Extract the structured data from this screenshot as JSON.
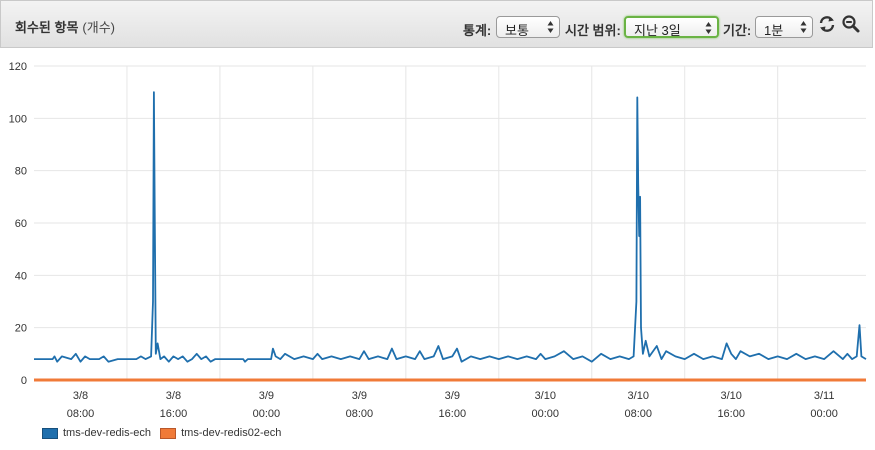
{
  "header": {
    "title": "회수된 항목",
    "title_unit": "(개수)",
    "stat_label": "통계:",
    "stat_value": "보통",
    "range_label": "시간 범위:",
    "range_value": "지난 3일",
    "period_label": "기간:",
    "period_value": "1분",
    "refresh_icon": "refresh-icon",
    "zoom_icon": "zoom-out-icon"
  },
  "colors": {
    "series1": "#1f6fad",
    "series2": "#f07a38",
    "grid": "#e6e6e6"
  },
  "chart_data": {
    "type": "line",
    "ylim": [
      0,
      120
    ],
    "yticks": [
      0,
      20,
      40,
      60,
      80,
      100,
      120
    ],
    "xticks": [
      {
        "x": 0.5,
        "line1": "3/8",
        "line2": "08:00"
      },
      {
        "x": 1.5,
        "line1": "3/8",
        "line2": "16:00"
      },
      {
        "x": 2.5,
        "line1": "3/9",
        "line2": "00:00"
      },
      {
        "x": 3.5,
        "line1": "3/9",
        "line2": "08:00"
      },
      {
        "x": 4.5,
        "line1": "3/9",
        "line2": "16:00"
      },
      {
        "x": 5.5,
        "line1": "3/10",
        "line2": "00:00"
      },
      {
        "x": 6.5,
        "line1": "3/10",
        "line2": "08:00"
      },
      {
        "x": 7.5,
        "line1": "3/10",
        "line2": "16:00"
      },
      {
        "x": 8.5,
        "line1": "3/11",
        "line2": "00:00"
      }
    ],
    "xlim": [
      0,
      8.95
    ],
    "series": [
      {
        "name": "tms-dev-redis-ech",
        "points": [
          [
            0.0,
            8
          ],
          [
            0.2,
            8
          ],
          [
            0.22,
            9
          ],
          [
            0.25,
            7
          ],
          [
            0.3,
            9
          ],
          [
            0.4,
            8
          ],
          [
            0.45,
            10
          ],
          [
            0.5,
            7
          ],
          [
            0.55,
            9
          ],
          [
            0.6,
            8
          ],
          [
            0.7,
            8
          ],
          [
            0.75,
            9
          ],
          [
            0.8,
            7
          ],
          [
            0.9,
            8
          ],
          [
            1.0,
            8
          ],
          [
            1.1,
            8
          ],
          [
            1.15,
            9
          ],
          [
            1.2,
            8
          ],
          [
            1.26,
            9
          ],
          [
            1.28,
            30
          ],
          [
            1.29,
            110
          ],
          [
            1.3,
            60
          ],
          [
            1.31,
            10
          ],
          [
            1.33,
            14
          ],
          [
            1.36,
            8
          ],
          [
            1.4,
            9
          ],
          [
            1.45,
            7
          ],
          [
            1.5,
            9
          ],
          [
            1.55,
            8
          ],
          [
            1.6,
            9
          ],
          [
            1.65,
            7
          ],
          [
            1.7,
            8
          ],
          [
            1.75,
            10
          ],
          [
            1.8,
            8
          ],
          [
            1.85,
            9
          ],
          [
            1.9,
            7
          ],
          [
            1.95,
            8
          ],
          [
            2.1,
            8
          ],
          [
            2.25,
            8
          ],
          [
            2.27,
            7
          ],
          [
            2.3,
            8
          ],
          [
            2.5,
            8
          ],
          [
            2.55,
            8
          ],
          [
            2.57,
            12
          ],
          [
            2.6,
            9
          ],
          [
            2.65,
            8
          ],
          [
            2.7,
            10
          ],
          [
            2.8,
            8
          ],
          [
            2.9,
            9
          ],
          [
            3.0,
            8
          ],
          [
            3.05,
            10
          ],
          [
            3.1,
            8
          ],
          [
            3.2,
            9
          ],
          [
            3.3,
            8
          ],
          [
            3.4,
            9
          ],
          [
            3.5,
            8
          ],
          [
            3.55,
            11
          ],
          [
            3.6,
            8
          ],
          [
            3.7,
            9
          ],
          [
            3.8,
            8
          ],
          [
            3.85,
            12
          ],
          [
            3.9,
            8
          ],
          [
            4.0,
            9
          ],
          [
            4.1,
            8
          ],
          [
            4.15,
            11
          ],
          [
            4.2,
            8
          ],
          [
            4.3,
            9
          ],
          [
            4.35,
            13
          ],
          [
            4.4,
            8
          ],
          [
            4.5,
            9
          ],
          [
            4.55,
            12
          ],
          [
            4.6,
            7
          ],
          [
            4.7,
            9
          ],
          [
            4.8,
            8
          ],
          [
            4.9,
            9
          ],
          [
            5.0,
            8
          ],
          [
            5.1,
            9
          ],
          [
            5.2,
            8
          ],
          [
            5.3,
            9
          ],
          [
            5.4,
            8
          ],
          [
            5.45,
            10
          ],
          [
            5.5,
            8
          ],
          [
            5.6,
            9
          ],
          [
            5.7,
            11
          ],
          [
            5.8,
            8
          ],
          [
            5.9,
            9
          ],
          [
            6.0,
            7
          ],
          [
            6.1,
            10
          ],
          [
            6.2,
            8
          ],
          [
            6.3,
            9
          ],
          [
            6.4,
            8
          ],
          [
            6.45,
            9
          ],
          [
            6.48,
            30
          ],
          [
            6.49,
            108
          ],
          [
            6.5,
            75
          ],
          [
            6.51,
            55
          ],
          [
            6.52,
            70
          ],
          [
            6.53,
            20
          ],
          [
            6.55,
            10
          ],
          [
            6.58,
            15
          ],
          [
            6.62,
            9
          ],
          [
            6.7,
            13
          ],
          [
            6.75,
            8
          ],
          [
            6.8,
            11
          ],
          [
            6.9,
            9
          ],
          [
            7.0,
            8
          ],
          [
            7.1,
            10
          ],
          [
            7.2,
            8
          ],
          [
            7.3,
            9
          ],
          [
            7.4,
            8
          ],
          [
            7.45,
            14
          ],
          [
            7.5,
            10
          ],
          [
            7.55,
            8
          ],
          [
            7.6,
            11
          ],
          [
            7.7,
            9
          ],
          [
            7.8,
            10
          ],
          [
            7.9,
            8
          ],
          [
            8.0,
            9
          ],
          [
            8.1,
            8
          ],
          [
            8.2,
            10
          ],
          [
            8.3,
            8
          ],
          [
            8.4,
            9
          ],
          [
            8.5,
            8
          ],
          [
            8.6,
            11
          ],
          [
            8.7,
            8
          ],
          [
            8.75,
            10
          ],
          [
            8.8,
            8
          ],
          [
            8.85,
            9
          ],
          [
            8.88,
            21
          ],
          [
            8.9,
            9
          ],
          [
            8.95,
            8
          ]
        ]
      },
      {
        "name": "tms-dev-redis02-ech",
        "points": [
          [
            0.0,
            0
          ],
          [
            8.95,
            0
          ]
        ]
      }
    ]
  }
}
